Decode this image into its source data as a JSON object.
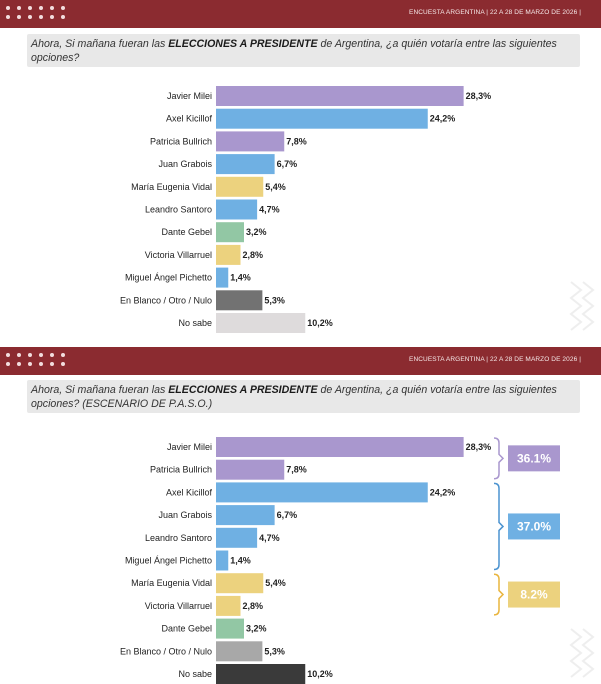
{
  "colors": {
    "purple": "#a997ce",
    "blue": "#6fb0e3",
    "yellow": "#ecd27e",
    "green": "#92c7a4",
    "darkgray": "#727272",
    "lightgray": "#dedbdc",
    "midgray": "#a8a8a8",
    "black": "#3a3a3a",
    "header": "#8b2b30",
    "bracket_purple": "#a997ce",
    "bracket_blue": "#4b93d0",
    "bracket_yellow": "#e9b53f"
  },
  "panel1": {
    "header": "ENCUESTA ARGENTINA | 22 A 28 DE MARZO DE 2026 |",
    "question": {
      "prefix": "Ahora, Si mañana fueran las ",
      "bold": "ELECCIONES A PRESIDENTE",
      "suffix": " de Argentina, ¿a quién votaría entre las siguientes opciones?"
    }
  },
  "panel2": {
    "header": "ENCUESTA ARGENTINA | 22 A 28 DE MARZO DE 2026 |",
    "question": {
      "prefix": "Ahora, Si mañana fueran las ",
      "bold": "ELECCIONES A PRESIDENTE",
      "suffix": " de Argentina, ¿a quién votaría entre las siguientes opciones? (ESCENARIO DE P.A.S.O.)"
    }
  },
  "chart_data": [
    {
      "type": "bar",
      "orientation": "horizontal",
      "title": "Ahora, Si mañana fueran las ELECCIONES A PRESIDENTE de Argentina, ¿a quién votaría entre las siguientes opciones?",
      "categories": [
        "Javier Milei",
        "Axel Kicillof",
        "Patricia Bullrich",
        "Juan Grabois",
        "María Eugenia Vidal",
        "Leandro Santoro",
        "Dante Gebel",
        "Victoria Villarruel",
        "Miguel Ángel Pichetto",
        "En Blanco / Otro / Nulo",
        "No sabe"
      ],
      "values": [
        28.3,
        24.2,
        7.8,
        6.7,
        5.4,
        4.7,
        3.2,
        2.8,
        1.4,
        5.3,
        10.2
      ],
      "labels": [
        "28,3%",
        "24,2%",
        "7,8%",
        "6,7%",
        "5,4%",
        "4,7%",
        "3,2%",
        "2,8%",
        "1,4%",
        "5,3%",
        "10,2%"
      ],
      "colors": [
        "purple",
        "blue",
        "purple",
        "blue",
        "yellow",
        "blue",
        "green",
        "yellow",
        "blue",
        "darkgray",
        "lightgray"
      ],
      "xlim": [
        0,
        30
      ]
    },
    {
      "type": "bar",
      "orientation": "horizontal",
      "title": "Ahora, Si mañana fueran las ELECCIONES A PRESIDENTE de Argentina, ¿a quién votaría entre las siguientes opciones? (ESCENARIO DE P.A.S.O.)",
      "categories": [
        "Javier Milei",
        "Patricia Bullrich",
        "Axel Kicillof",
        "Juan Grabois",
        "Leandro Santoro",
        "Miguel Ángel Pichetto",
        "María Eugenia Vidal",
        "Victoria Villarruel",
        "Dante Gebel",
        "En Blanco / Otro / Nulo",
        "No sabe"
      ],
      "values": [
        28.3,
        7.8,
        24.2,
        6.7,
        4.7,
        1.4,
        5.4,
        2.8,
        3.2,
        5.3,
        10.2
      ],
      "labels": [
        "28,3%",
        "7,8%",
        "24,2%",
        "6,7%",
        "4,7%",
        "1,4%",
        "5,4%",
        "2,8%",
        "3,2%",
        "5,3%",
        "10,2%"
      ],
      "colors": [
        "purple",
        "purple",
        "blue",
        "blue",
        "blue",
        "blue",
        "yellow",
        "yellow",
        "green",
        "midgray",
        "black"
      ],
      "xlim": [
        0,
        30
      ],
      "groups": [
        {
          "label": "36.1%",
          "from": 0,
          "to": 1,
          "color": "purple",
          "bracket": "bracket_purple"
        },
        {
          "label": "37.0%",
          "from": 2,
          "to": 5,
          "color": "blue",
          "bracket": "bracket_blue"
        },
        {
          "label": "8.2%",
          "from": 6,
          "to": 7,
          "color": "yellow",
          "bracket": "bracket_yellow"
        }
      ]
    }
  ]
}
